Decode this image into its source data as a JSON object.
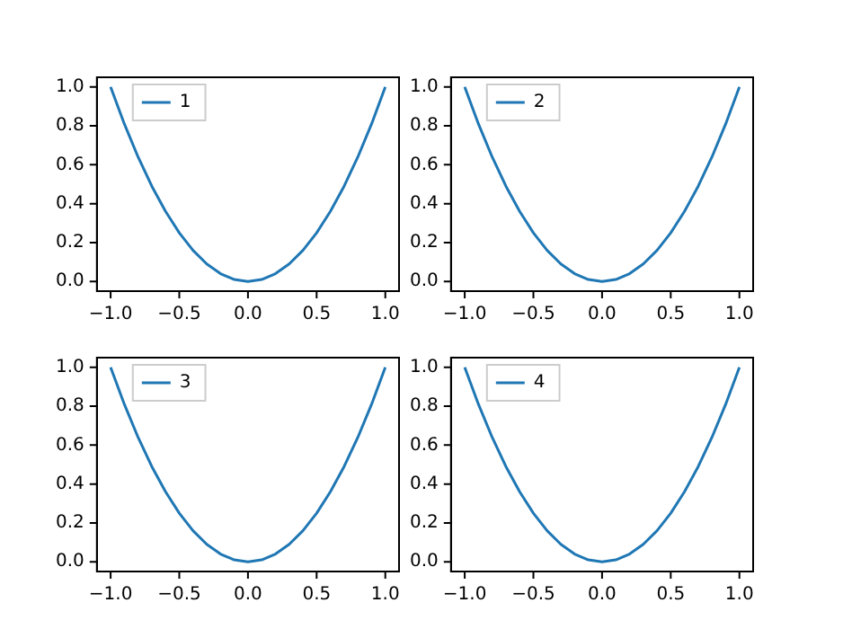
{
  "chart_data": [
    {
      "type": "line",
      "x": [
        -1,
        -0.9,
        -0.8,
        -0.7,
        -0.6,
        -0.5,
        -0.4,
        -0.3,
        -0.2,
        -0.1,
        0,
        0.1,
        0.2,
        0.3,
        0.4,
        0.5,
        0.6,
        0.7,
        0.8,
        0.9,
        1
      ],
      "series": [
        {
          "name": "1",
          "color": "#1f77b4",
          "values": [
            1,
            0.81,
            0.64,
            0.49,
            0.36,
            0.25,
            0.16,
            0.09,
            0.04,
            0.01,
            0,
            0.01,
            0.04,
            0.09,
            0.16,
            0.25,
            0.36,
            0.49,
            0.64,
            0.81,
            1
          ]
        }
      ],
      "xlim": [
        -1.1,
        1.1
      ],
      "ylim": [
        -0.05,
        1.05
      ],
      "xticks": [
        {
          "value": -1,
          "label": "−1.0"
        },
        {
          "value": -0.5,
          "label": "−0.5"
        },
        {
          "value": 0,
          "label": "0.0"
        },
        {
          "value": 0.5,
          "label": "0.5"
        },
        {
          "value": 1,
          "label": "1.0"
        }
      ],
      "yticks": [
        {
          "value": 0,
          "label": "0.0"
        },
        {
          "value": 0.2,
          "label": "0.2"
        },
        {
          "value": 0.4,
          "label": "0.4"
        },
        {
          "value": 0.6,
          "label": "0.6"
        },
        {
          "value": 0.8,
          "label": "0.8"
        },
        {
          "value": 1,
          "label": "1.0"
        }
      ],
      "legend": "top left",
      "grid": false,
      "marker": "none"
    },
    {
      "type": "line",
      "x": [
        -1,
        -0.9,
        -0.8,
        -0.7,
        -0.6,
        -0.5,
        -0.4,
        -0.3,
        -0.2,
        -0.1,
        0,
        0.1,
        0.2,
        0.3,
        0.4,
        0.5,
        0.6,
        0.7,
        0.8,
        0.9,
        1
      ],
      "series": [
        {
          "name": "2",
          "color": "#1f77b4",
          "values": [
            1,
            0.81,
            0.64,
            0.49,
            0.36,
            0.25,
            0.16,
            0.09,
            0.04,
            0.01,
            0,
            0.01,
            0.04,
            0.09,
            0.16,
            0.25,
            0.36,
            0.49,
            0.64,
            0.81,
            1
          ]
        }
      ],
      "xlim": [
        -1.1,
        1.1
      ],
      "ylim": [
        -0.05,
        1.05
      ],
      "xticks": [
        {
          "value": -1,
          "label": "−1.0"
        },
        {
          "value": -0.5,
          "label": "−0.5"
        },
        {
          "value": 0,
          "label": "0.0"
        },
        {
          "value": 0.5,
          "label": "0.5"
        },
        {
          "value": 1,
          "label": "1.0"
        }
      ],
      "yticks": [
        {
          "value": 0,
          "label": "0.0"
        },
        {
          "value": 0.2,
          "label": "0.2"
        },
        {
          "value": 0.4,
          "label": "0.4"
        },
        {
          "value": 0.6,
          "label": "0.6"
        },
        {
          "value": 0.8,
          "label": "0.8"
        },
        {
          "value": 1,
          "label": "1.0"
        }
      ],
      "legend": "top left",
      "grid": false,
      "marker": "none"
    },
    {
      "type": "line",
      "x": [
        -1,
        -0.9,
        -0.8,
        -0.7,
        -0.6,
        -0.5,
        -0.4,
        -0.3,
        -0.2,
        -0.1,
        0,
        0.1,
        0.2,
        0.3,
        0.4,
        0.5,
        0.6,
        0.7,
        0.8,
        0.9,
        1
      ],
      "series": [
        {
          "name": "3",
          "color": "#1f77b4",
          "values": [
            1,
            0.81,
            0.64,
            0.49,
            0.36,
            0.25,
            0.16,
            0.09,
            0.04,
            0.01,
            0,
            0.01,
            0.04,
            0.09,
            0.16,
            0.25,
            0.36,
            0.49,
            0.64,
            0.81,
            1
          ]
        }
      ],
      "xlim": [
        -1.1,
        1.1
      ],
      "ylim": [
        -0.05,
        1.05
      ],
      "xticks": [
        {
          "value": -1,
          "label": "−1.0"
        },
        {
          "value": -0.5,
          "label": "−0.5"
        },
        {
          "value": 0,
          "label": "0.0"
        },
        {
          "value": 0.5,
          "label": "0.5"
        },
        {
          "value": 1,
          "label": "1.0"
        }
      ],
      "yticks": [
        {
          "value": 0,
          "label": "0.0"
        },
        {
          "value": 0.2,
          "label": "0.2"
        },
        {
          "value": 0.4,
          "label": "0.4"
        },
        {
          "value": 0.6,
          "label": "0.6"
        },
        {
          "value": 0.8,
          "label": "0.8"
        },
        {
          "value": 1,
          "label": "1.0"
        }
      ],
      "legend": "top left",
      "grid": false,
      "marker": "none"
    },
    {
      "type": "line",
      "x": [
        -1,
        -0.9,
        -0.8,
        -0.7,
        -0.6,
        -0.5,
        -0.4,
        -0.3,
        -0.2,
        -0.1,
        0,
        0.1,
        0.2,
        0.3,
        0.4,
        0.5,
        0.6,
        0.7,
        0.8,
        0.9,
        1
      ],
      "series": [
        {
          "name": "4",
          "color": "#1f77b4",
          "values": [
            1,
            0.81,
            0.64,
            0.49,
            0.36,
            0.25,
            0.16,
            0.09,
            0.04,
            0.01,
            0,
            0.01,
            0.04,
            0.09,
            0.16,
            0.25,
            0.36,
            0.49,
            0.64,
            0.81,
            1
          ]
        }
      ],
      "xlim": [
        -1.1,
        1.1
      ],
      "ylim": [
        -0.05,
        1.05
      ],
      "xticks": [
        {
          "value": -1,
          "label": "−1.0"
        },
        {
          "value": -0.5,
          "label": "−0.5"
        },
        {
          "value": 0,
          "label": "0.0"
        },
        {
          "value": 0.5,
          "label": "0.5"
        },
        {
          "value": 1,
          "label": "1.0"
        }
      ],
      "yticks": [
        {
          "value": 0,
          "label": "0.0"
        },
        {
          "value": 0.2,
          "label": "0.2"
        },
        {
          "value": 0.4,
          "label": "0.4"
        },
        {
          "value": 0.6,
          "label": "0.6"
        },
        {
          "value": 0.8,
          "label": "0.8"
        },
        {
          "value": 1,
          "label": "1.0"
        }
      ],
      "legend": "top left",
      "grid": false,
      "marker": "none"
    }
  ]
}
